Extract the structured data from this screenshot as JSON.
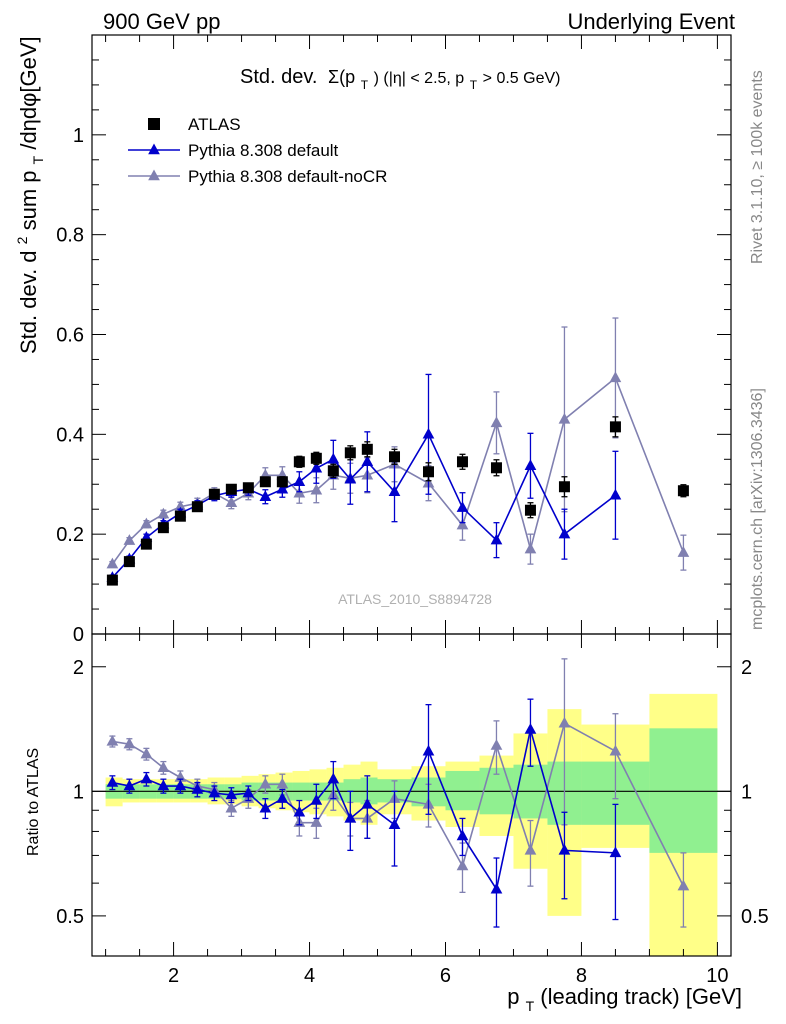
{
  "header": {
    "left": "900 GeV pp",
    "right": "Underlying Event"
  },
  "side_labels": {
    "rivet": "Rivet 3.1.10, ≥ 100k events",
    "mcplots": "mcplots.cern.ch [arXiv:1306.3436]"
  },
  "chart_data": [
    {
      "type": "scatter",
      "panel": "main",
      "title": "Std. dev. Σ(p_T) (|η| < 2.5, p_T > 0.5 GeV)",
      "title_parts": [
        "Std. dev.",
        "Σ(p",
        "T",
        ") (|η| < 2.5, p",
        "T",
        " > 0.5 GeV)"
      ],
      "ylabel": "Std. dev. d² sum p_T/dηdφ[GeV]",
      "ylabel_parts": [
        "Std. dev. d",
        "2",
        " sum p",
        "T",
        "/dηdφ[GeV]"
      ],
      "watermark": "ATLAS_2010_S8894728",
      "xlim": [
        0.8,
        10.2
      ],
      "ylim": [
        0,
        1.2
      ],
      "yticks": [
        0,
        0.2,
        0.4,
        0.6,
        0.8,
        1
      ],
      "ytick_labels": [
        "0",
        "0.2",
        "0.4",
        "0.6",
        "0.8",
        "1"
      ],
      "legend_position": "top-left",
      "x": [
        1.1,
        1.35,
        1.6,
        1.85,
        2.1,
        2.35,
        2.6,
        2.85,
        3.1,
        3.35,
        3.6,
        3.85,
        4.1,
        4.35,
        4.6,
        4.85,
        5.25,
        5.75,
        6.25,
        6.75,
        7.25,
        7.75,
        8.5,
        9.5
      ],
      "series": [
        {
          "name": "ATLAS",
          "marker": "square",
          "color": "#000000",
          "y": [
            0.108,
            0.145,
            0.18,
            0.213,
            0.236,
            0.255,
            0.28,
            0.29,
            0.293,
            0.305,
            0.305,
            0.345,
            0.352,
            0.327,
            0.363,
            0.37,
            0.355,
            0.325,
            0.345,
            0.333,
            0.248,
            0.295,
            0.415,
            0.287
          ],
          "yerr": [
            0.004,
            0.004,
            0.005,
            0.005,
            0.006,
            0.006,
            0.007,
            0.007,
            0.008,
            0.009,
            0.01,
            0.011,
            0.012,
            0.013,
            0.014,
            0.015,
            0.015,
            0.018,
            0.015,
            0.016,
            0.015,
            0.02,
            0.02,
            0.012
          ]
        },
        {
          "name": "Pythia 8.308 default",
          "marker": "triangle",
          "color": "#0000cc",
          "y": [
            0.113,
            0.15,
            0.193,
            0.22,
            0.242,
            0.258,
            0.277,
            0.285,
            0.29,
            0.275,
            0.29,
            0.305,
            0.332,
            0.35,
            0.31,
            0.345,
            0.285,
            0.4,
            0.253,
            0.188,
            0.337,
            0.2,
            0.278,
            null
          ],
          "yerr": [
            0.005,
            0.006,
            0.007,
            0.007,
            0.008,
            0.009,
            0.01,
            0.011,
            0.012,
            0.014,
            0.016,
            0.02,
            0.03,
            0.038,
            0.05,
            0.06,
            0.06,
            0.12,
            0.03,
            0.035,
            0.065,
            0.05,
            0.088,
            null
          ]
        },
        {
          "name": "Pythia 8.308 default-noCR",
          "marker": "triangle",
          "color": "#8080b0",
          "y": [
            0.14,
            0.187,
            0.22,
            0.24,
            0.255,
            0.262,
            0.282,
            0.263,
            0.282,
            0.318,
            0.318,
            0.282,
            0.288,
            0.318,
            0.312,
            0.318,
            0.34,
            0.302,
            0.218,
            0.423,
            0.17,
            0.43,
            0.513,
            0.163
          ],
          "yerr": [
            0.005,
            0.006,
            0.007,
            0.008,
            0.009,
            0.01,
            0.011,
            0.012,
            0.013,
            0.015,
            0.017,
            0.02,
            0.025,
            0.028,
            0.03,
            0.035,
            0.035,
            0.035,
            0.03,
            0.062,
            0.03,
            0.185,
            0.12,
            0.035
          ]
        }
      ]
    },
    {
      "type": "scatter",
      "panel": "ratio",
      "ylabel": "Ratio to ATLAS",
      "xlabel": "p_T (leading track) [GeV]",
      "xlabel_parts": [
        "p",
        "T",
        " (leading track) [GeV]"
      ],
      "xlim": [
        0.8,
        10.2
      ],
      "ylim": [
        0.4,
        2.4
      ],
      "log_y": true,
      "xticks": [
        2,
        4,
        6,
        8,
        10
      ],
      "xtick_labels": [
        "2",
        "4",
        "6",
        "8",
        "10"
      ],
      "yticks": [
        0.5,
        1,
        2
      ],
      "ytick_labels": [
        "0.5",
        "1",
        "2"
      ],
      "reference_line": 1,
      "uncertainty_bins": {
        "edges": [
          1.0,
          1.25,
          1.5,
          1.75,
          2.0,
          2.25,
          2.5,
          2.75,
          3.0,
          3.25,
          3.5,
          3.75,
          4.0,
          4.25,
          4.5,
          4.75,
          5.0,
          5.5,
          6.0,
          6.5,
          7.0,
          7.5,
          8.0,
          9.0,
          10.0
        ],
        "inner_band": {
          "color": "#90f090",
          "lo": [
            0.96,
            0.96,
            0.96,
            0.96,
            0.96,
            0.96,
            0.96,
            0.96,
            0.95,
            0.95,
            0.95,
            0.95,
            0.95,
            0.95,
            0.94,
            0.93,
            0.94,
            0.92,
            0.9,
            0.88,
            0.86,
            0.83,
            0.83,
            0.71
          ],
          "hi": [
            1.04,
            1.04,
            1.04,
            1.04,
            1.04,
            1.04,
            1.04,
            1.04,
            1.05,
            1.05,
            1.05,
            1.05,
            1.05,
            1.05,
            1.07,
            1.08,
            1.07,
            1.08,
            1.12,
            1.14,
            1.16,
            1.18,
            1.18,
            1.42
          ]
        },
        "outer_band": {
          "color": "#ffff88",
          "lo": [
            0.92,
            0.94,
            0.94,
            0.94,
            0.94,
            0.94,
            0.93,
            0.93,
            0.92,
            0.91,
            0.9,
            0.89,
            0.88,
            0.87,
            0.85,
            0.83,
            0.88,
            0.85,
            0.82,
            0.78,
            0.65,
            0.5,
            0.73,
            0.35
          ],
          "hi": [
            1.08,
            1.07,
            1.07,
            1.07,
            1.07,
            1.07,
            1.08,
            1.08,
            1.09,
            1.1,
            1.11,
            1.12,
            1.13,
            1.14,
            1.16,
            1.18,
            1.13,
            1.15,
            1.18,
            1.22,
            1.38,
            1.58,
            1.45,
            1.72
          ]
        }
      },
      "x": [
        1.1,
        1.35,
        1.6,
        1.85,
        2.1,
        2.35,
        2.6,
        2.85,
        3.1,
        3.35,
        3.6,
        3.85,
        4.1,
        4.35,
        4.6,
        4.85,
        5.25,
        5.75,
        6.25,
        6.75,
        7.25,
        7.75,
        8.5,
        9.5
      ],
      "series": [
        {
          "name": "Pythia 8.308 default",
          "marker": "triangle",
          "color": "#0000cc",
          "y": [
            1.05,
            1.03,
            1.07,
            1.03,
            1.03,
            1.01,
            0.99,
            0.98,
            0.99,
            0.91,
            0.96,
            0.89,
            0.95,
            1.07,
            0.86,
            0.93,
            0.83,
            1.25,
            0.78,
            0.58,
            1.41,
            0.72,
            0.71,
            null
          ],
          "yerr": [
            0.04,
            0.04,
            0.04,
            0.04,
            0.04,
            0.04,
            0.04,
            0.04,
            0.04,
            0.05,
            0.05,
            0.06,
            0.09,
            0.11,
            0.14,
            0.16,
            0.17,
            0.37,
            0.08,
            0.11,
            0.26,
            0.17,
            0.22,
            null
          ]
        },
        {
          "name": "Pythia 8.308 default-noCR",
          "marker": "triangle",
          "color": "#8080b0",
          "y": [
            1.32,
            1.3,
            1.23,
            1.14,
            1.08,
            1.03,
            1.01,
            0.91,
            0.96,
            1.04,
            1.04,
            0.84,
            0.84,
            0.98,
            0.86,
            0.86,
            0.96,
            0.93,
            0.66,
            1.29,
            0.72,
            1.46,
            1.25,
            0.59
          ],
          "yerr": [
            0.04,
            0.04,
            0.04,
            0.04,
            0.04,
            0.04,
            0.04,
            0.04,
            0.05,
            0.05,
            0.06,
            0.06,
            0.07,
            0.08,
            0.08,
            0.09,
            0.1,
            0.11,
            0.09,
            0.19,
            0.13,
            0.63,
            0.29,
            0.12
          ]
        }
      ]
    }
  ]
}
